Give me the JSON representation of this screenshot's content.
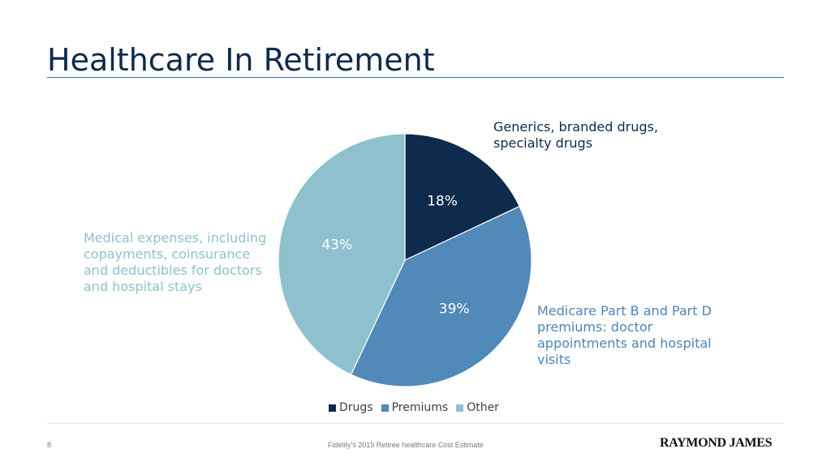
{
  "title": "Healthcare In Retirement",
  "chart_data": {
    "type": "pie",
    "categories": [
      "Drugs",
      "Premiums",
      "Other"
    ],
    "values": [
      18,
      39,
      43
    ],
    "labels": [
      "18%",
      "39%",
      "43%"
    ],
    "colors": [
      "#0e2a4c",
      "#5189b8",
      "#8fc0cd"
    ],
    "legend_position": "bottom",
    "start": "12 o'clock, clockwise"
  },
  "callouts": {
    "drugs": "Generics, branded drugs, specialty drugs",
    "premiums": "Medicare Part B and Part D premiums: doctor appointments and hospital visits",
    "other": "Medical expenses, including copayments, coinsurance and deductibles for doctors and hospital stays"
  },
  "footer": {
    "page_number": "8",
    "source": "Fidelity's 2019 Retiree healthcare Cost Estimate",
    "brand": "RAYMOND JAMES"
  }
}
